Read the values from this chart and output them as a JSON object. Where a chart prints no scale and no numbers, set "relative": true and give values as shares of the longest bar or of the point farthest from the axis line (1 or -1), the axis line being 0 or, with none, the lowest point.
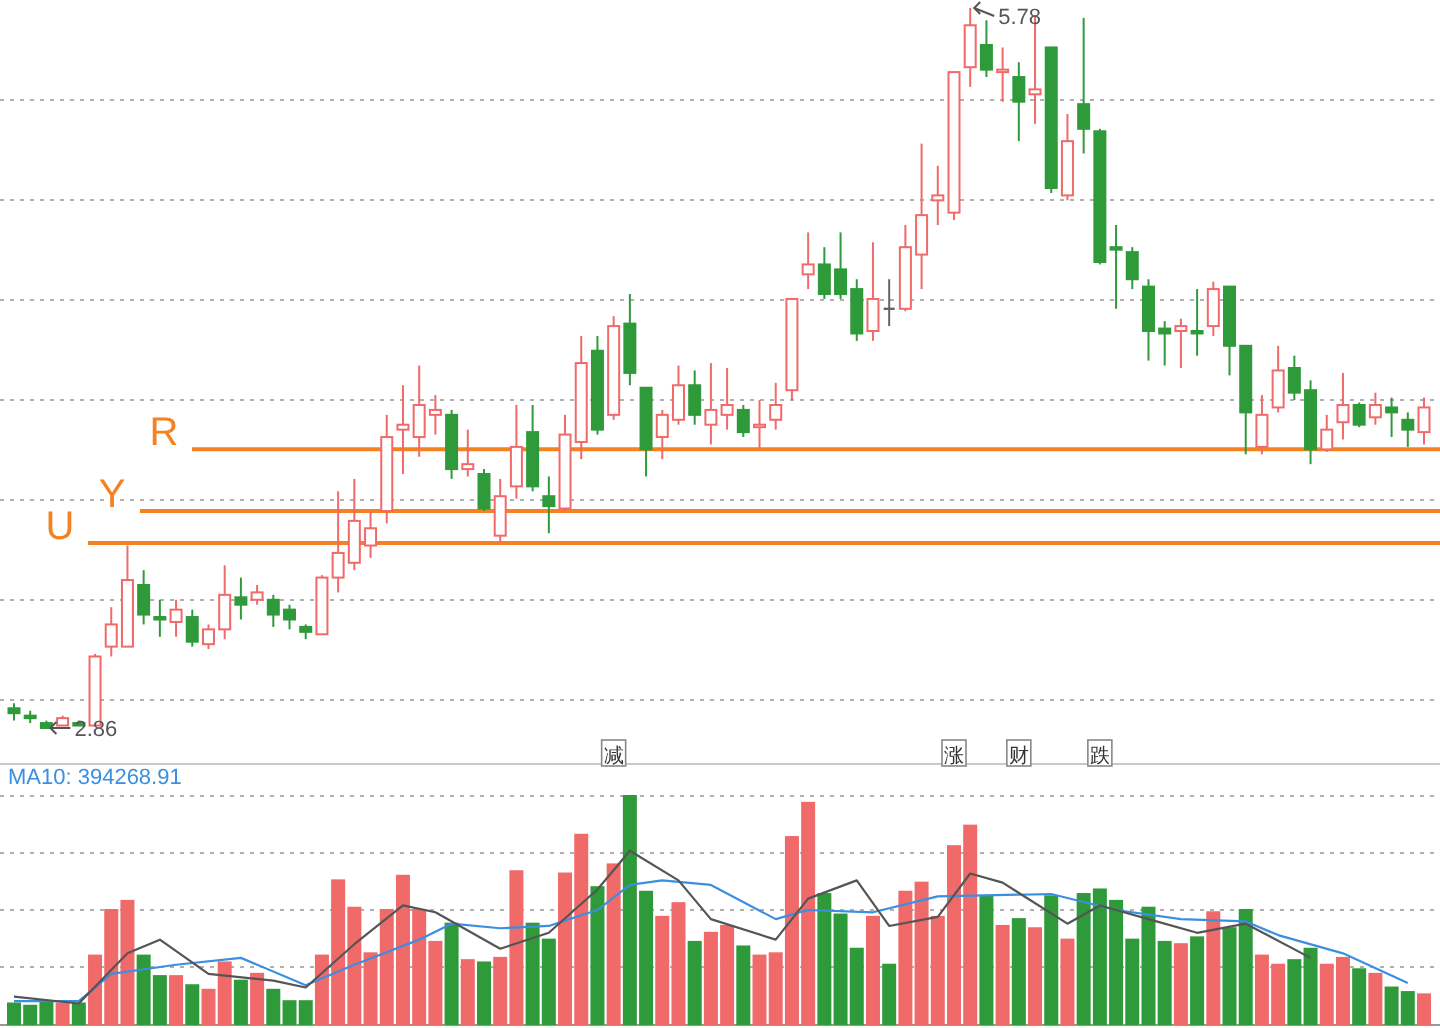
{
  "chart_data": [
    {
      "type": "candlestick",
      "grid": true,
      "categories": [
        null,
        null,
        null,
        null,
        null,
        null,
        null,
        null,
        null,
        null,
        null,
        null,
        null,
        null,
        null,
        null,
        null,
        null,
        null,
        null,
        null,
        null,
        null,
        null,
        null,
        null,
        null,
        null,
        null,
        null,
        null,
        null,
        null,
        null,
        null,
        null,
        null,
        "减",
        null,
        null,
        null,
        null,
        null,
        null,
        null,
        null,
        null,
        null,
        null,
        null,
        null,
        null,
        null,
        null,
        null,
        null,
        null,
        null,
        "涨",
        null,
        null,
        null,
        "财",
        null,
        null,
        null,
        null,
        "跌",
        null,
        null,
        null,
        null,
        null,
        null,
        null,
        null,
        null,
        null,
        null,
        null,
        null,
        null,
        null,
        null,
        null,
        null,
        null,
        null
      ],
      "ohlc": [
        [
          2.94,
          2.96,
          2.89,
          2.92
        ],
        [
          2.91,
          2.93,
          2.88,
          2.9
        ],
        [
          2.88,
          2.89,
          2.86,
          2.86
        ],
        [
          2.87,
          2.91,
          2.87,
          2.9
        ],
        [
          2.88,
          2.89,
          2.87,
          2.87
        ],
        [
          2.87,
          3.16,
          2.87,
          3.15
        ],
        [
          3.19,
          3.35,
          3.15,
          3.28
        ],
        [
          3.19,
          3.6,
          3.19,
          3.46
        ],
        [
          3.44,
          3.5,
          3.28,
          3.32
        ],
        [
          3.31,
          3.38,
          3.23,
          3.3
        ],
        [
          3.29,
          3.38,
          3.23,
          3.34
        ],
        [
          3.31,
          3.34,
          3.19,
          3.21
        ],
        [
          3.2,
          3.28,
          3.18,
          3.26
        ],
        [
          3.26,
          3.52,
          3.22,
          3.4
        ],
        [
          3.39,
          3.47,
          3.3,
          3.36
        ],
        [
          3.38,
          3.44,
          3.36,
          3.41
        ],
        [
          3.38,
          3.4,
          3.27,
          3.32
        ],
        [
          3.34,
          3.36,
          3.26,
          3.3
        ],
        [
          3.27,
          3.28,
          3.22,
          3.25
        ],
        [
          3.24,
          3.48,
          3.24,
          3.47
        ],
        [
          3.47,
          3.82,
          3.41,
          3.57
        ],
        [
          3.53,
          3.87,
          3.5,
          3.7
        ],
        [
          3.6,
          3.74,
          3.55,
          3.67
        ],
        [
          3.74,
          4.13,
          3.69,
          4.04
        ],
        [
          4.07,
          4.25,
          3.89,
          4.09
        ],
        [
          4.04,
          4.33,
          3.96,
          4.17
        ],
        [
          4.13,
          4.21,
          4.05,
          4.15
        ],
        [
          4.13,
          4.15,
          3.87,
          3.91
        ],
        [
          3.91,
          4.07,
          3.88,
          3.93
        ],
        [
          3.89,
          3.91,
          3.74,
          3.75
        ],
        [
          3.64,
          3.87,
          3.61,
          3.8
        ],
        [
          3.84,
          4.17,
          3.79,
          4.0
        ],
        [
          4.06,
          4.17,
          3.82,
          3.84
        ],
        [
          3.8,
          3.88,
          3.65,
          3.76
        ],
        [
          3.75,
          4.13,
          3.74,
          4.05
        ],
        [
          4.02,
          4.45,
          3.95,
          4.34
        ],
        [
          4.39,
          4.45,
          4.05,
          4.07
        ],
        [
          4.13,
          4.53,
          4.11,
          4.49
        ],
        [
          4.5,
          4.62,
          4.25,
          4.3
        ],
        [
          4.24,
          4.24,
          3.88,
          3.99
        ],
        [
          4.04,
          4.15,
          3.95,
          4.13
        ],
        [
          4.11,
          4.33,
          4.09,
          4.25
        ],
        [
          4.25,
          4.31,
          4.09,
          4.13
        ],
        [
          4.09,
          4.34,
          4.01,
          4.15
        ],
        [
          4.13,
          4.32,
          4.07,
          4.17
        ],
        [
          4.15,
          4.17,
          4.04,
          4.06
        ],
        [
          4.08,
          4.19,
          3.99,
          4.09
        ],
        [
          4.11,
          4.26,
          4.07,
          4.17
        ],
        [
          4.23,
          4.6,
          4.19,
          4.6
        ],
        [
          4.7,
          4.87,
          4.64,
          4.74
        ],
        [
          4.74,
          4.81,
          4.6,
          4.62
        ],
        [
          4.72,
          4.87,
          4.6,
          4.62
        ],
        [
          4.64,
          4.68,
          4.43,
          4.46
        ],
        [
          4.47,
          4.83,
          4.43,
          4.6
        ],
        [
          4.56,
          4.68,
          4.49,
          4.56
        ],
        [
          4.56,
          4.9,
          4.55,
          4.81
        ],
        [
          4.78,
          5.23,
          4.64,
          4.94
        ],
        [
          5.0,
          5.14,
          4.9,
          5.02
        ],
        [
          4.95,
          5.52,
          4.92,
          5.52
        ],
        [
          5.54,
          5.78,
          5.46,
          5.71
        ],
        [
          5.63,
          5.73,
          5.5,
          5.53
        ],
        [
          5.52,
          5.62,
          5.4,
          5.53
        ],
        [
          5.5,
          5.56,
          5.24,
          5.4
        ],
        [
          5.43,
          5.75,
          5.31,
          5.45
        ],
        [
          5.62,
          5.62,
          5.03,
          5.05
        ],
        [
          5.02,
          5.35,
          5.0,
          5.24
        ],
        [
          5.39,
          5.74,
          5.19,
          5.29
        ],
        [
          5.28,
          5.29,
          4.74,
          4.75
        ],
        [
          4.81,
          4.9,
          4.56,
          4.8
        ],
        [
          4.79,
          4.81,
          4.64,
          4.68
        ],
        [
          4.65,
          4.68,
          4.35,
          4.47
        ],
        [
          4.48,
          4.51,
          4.33,
          4.46
        ],
        [
          4.47,
          4.52,
          4.32,
          4.49
        ],
        [
          4.47,
          4.64,
          4.37,
          4.46
        ],
        [
          4.49,
          4.67,
          4.45,
          4.64
        ],
        [
          4.65,
          4.65,
          4.29,
          4.41
        ],
        [
          4.41,
          4.41,
          3.97,
          4.14
        ],
        [
          4.0,
          4.21,
          3.97,
          4.13
        ],
        [
          4.16,
          4.41,
          4.14,
          4.31
        ],
        [
          4.32,
          4.37,
          4.19,
          4.22
        ],
        [
          4.23,
          4.27,
          3.93,
          3.99
        ],
        [
          3.99,
          4.13,
          3.98,
          4.07
        ],
        [
          4.1,
          4.3,
          4.03,
          4.17
        ],
        [
          4.17,
          4.18,
          4.08,
          4.09
        ],
        [
          4.12,
          4.22,
          4.09,
          4.17
        ],
        [
          4.16,
          4.2,
          4.04,
          4.14
        ],
        [
          4.11,
          4.14,
          4.0,
          4.07
        ],
        [
          4.06,
          4.2,
          4.01,
          4.16
        ]
      ],
      "colors": [
        "#2f9a3a",
        "#2f9a3a",
        "#2f9a3a",
        "#f06a6a",
        "#2f9a3a",
        "#f06a6a",
        "#f06a6a",
        "#f06a6a",
        "#2f9a3a",
        "#2f9a3a",
        "#f06a6a",
        "#2f9a3a",
        "#f06a6a",
        "#f06a6a",
        "#2f9a3a",
        "#f06a6a",
        "#2f9a3a",
        "#2f9a3a",
        "#2f9a3a",
        "#f06a6a",
        "#f06a6a",
        "#f06a6a",
        "#f06a6a",
        "#f06a6a",
        "#f06a6a",
        "#f06a6a",
        "#f06a6a",
        "#2f9a3a",
        "#f06a6a",
        "#2f9a3a",
        "#f06a6a",
        "#f06a6a",
        "#2f9a3a",
        "#2f9a3a",
        "#f06a6a",
        "#f06a6a",
        "#2f9a3a",
        "#f06a6a",
        "#2f9a3a",
        "#2f9a3a",
        "#f06a6a",
        "#f06a6a",
        "#2f9a3a",
        "#f06a6a",
        "#f06a6a",
        "#2f9a3a",
        "#f06a6a",
        "#f06a6a",
        "#f06a6a",
        "#f06a6a",
        "#2f9a3a",
        "#2f9a3a",
        "#2f9a3a",
        "#f06a6a",
        "#666666",
        "#f06a6a",
        "#f06a6a",
        "#f06a6a",
        "#f06a6a",
        "#f06a6a",
        "#2f9a3a",
        "#f06a6a",
        "#2f9a3a",
        "#f06a6a",
        "#2f9a3a",
        "#f06a6a",
        "#2f9a3a",
        "#2f9a3a",
        "#2f9a3a",
        "#2f9a3a",
        "#2f9a3a",
        "#2f9a3a",
        "#f06a6a",
        "#2f9a3a",
        "#f06a6a",
        "#2f9a3a",
        "#2f9a3a",
        "#f06a6a",
        "#f06a6a",
        "#2f9a3a",
        "#2f9a3a",
        "#f06a6a",
        "#f06a6a",
        "#2f9a3a",
        "#f06a6a",
        "#2f9a3a",
        "#2f9a3a",
        "#f06a6a"
      ],
      "ref_lines": [
        {
          "axis": "y",
          "value": 3.61,
          "label": "U",
          "color": "#f58220"
        },
        {
          "axis": "y",
          "value": 3.74,
          "label": "Y",
          "color": "#f58220"
        },
        {
          "axis": "y",
          "value": 3.99,
          "label": "R",
          "color": "#f58220"
        }
      ],
      "annotations": [
        "5.78",
        "2.86"
      ]
    },
    {
      "type": "bar",
      "relative": true,
      "grid": true,
      "legend": "top left",
      "categories": [
        null,
        null,
        null,
        null,
        null,
        null,
        null,
        null,
        null,
        null,
        null,
        null,
        null,
        null,
        null,
        null,
        null,
        null,
        null,
        null,
        null,
        null,
        null,
        null,
        null,
        null,
        null,
        null,
        null,
        null,
        null,
        null,
        null,
        null,
        null,
        null,
        null,
        null,
        null,
        null,
        null,
        null,
        null,
        null,
        null,
        null,
        null,
        null,
        null,
        null,
        null,
        null,
        null,
        null,
        null,
        null,
        null,
        null,
        null,
        null,
        null,
        null,
        null,
        null,
        null,
        null,
        null,
        null,
        null,
        null,
        null,
        null,
        null,
        null,
        null,
        null,
        null,
        null,
        null,
        null,
        null,
        null,
        null,
        null,
        null,
        null,
        null,
        null
      ],
      "series": [
        {
          "type": "bar",
          "values": [
            0.09,
            0.08,
            0.1,
            0.09,
            0.09,
            0.3,
            0.5,
            0.54,
            0.3,
            0.21,
            0.21,
            0.17,
            0.15,
            0.27,
            0.19,
            0.22,
            0.15,
            0.1,
            0.1,
            0.3,
            0.63,
            0.51,
            0.31,
            0.5,
            0.65,
            0.5,
            0.36,
            0.44,
            0.28,
            0.27,
            0.29,
            0.67,
            0.44,
            0.37,
            0.66,
            0.83,
            0.6,
            0.7,
            1,
            0.58,
            0.47,
            0.53,
            0.36,
            0.4,
            0.43,
            0.34,
            0.3,
            0.31,
            0.82,
            0.97,
            0.57,
            0.48,
            0.33,
            0.47,
            0.26,
            0.58,
            0.62,
            0.47,
            0.78,
            0.87,
            0.56,
            0.43,
            0.46,
            0.42,
            0.56,
            0.37,
            0.57,
            0.59,
            0.54,
            0.37,
            0.51,
            0.36,
            0.35,
            0.38,
            0.49,
            0.42,
            0.5,
            0.3,
            0.26,
            0.28,
            0.33,
            0.26,
            0.29,
            0.24,
            0.22,
            0.16,
            0.14,
            0.13
          ],
          "colors": [
            "#2f9a3a",
            "#2f9a3a",
            "#2f9a3a",
            "#f06a6a",
            "#2f9a3a",
            "#f06a6a",
            "#f06a6a",
            "#f06a6a",
            "#2f9a3a",
            "#2f9a3a",
            "#f06a6a",
            "#2f9a3a",
            "#f06a6a",
            "#f06a6a",
            "#2f9a3a",
            "#f06a6a",
            "#2f9a3a",
            "#2f9a3a",
            "#2f9a3a",
            "#f06a6a",
            "#f06a6a",
            "#f06a6a",
            "#f06a6a",
            "#f06a6a",
            "#f06a6a",
            "#f06a6a",
            "#f06a6a",
            "#2f9a3a",
            "#f06a6a",
            "#2f9a3a",
            "#f06a6a",
            "#f06a6a",
            "#2f9a3a",
            "#2f9a3a",
            "#f06a6a",
            "#f06a6a",
            "#2f9a3a",
            "#f06a6a",
            "#2f9a3a",
            "#2f9a3a",
            "#f06a6a",
            "#f06a6a",
            "#2f9a3a",
            "#f06a6a",
            "#f06a6a",
            "#2f9a3a",
            "#f06a6a",
            "#f06a6a",
            "#f06a6a",
            "#f06a6a",
            "#2f9a3a",
            "#2f9a3a",
            "#2f9a3a",
            "#f06a6a",
            "#2f9a3a",
            "#f06a6a",
            "#f06a6a",
            "#f06a6a",
            "#f06a6a",
            "#f06a6a",
            "#2f9a3a",
            "#f06a6a",
            "#2f9a3a",
            "#f06a6a",
            "#2f9a3a",
            "#f06a6a",
            "#2f9a3a",
            "#2f9a3a",
            "#2f9a3a",
            "#2f9a3a",
            "#2f9a3a",
            "#2f9a3a",
            "#f06a6a",
            "#2f9a3a",
            "#f06a6a",
            "#2f9a3a",
            "#2f9a3a",
            "#f06a6a",
            "#f06a6a",
            "#2f9a3a",
            "#2f9a3a",
            "#f06a6a",
            "#f06a6a",
            "#2f9a3a",
            "#f06a6a",
            "#2f9a3a",
            "#2f9a3a",
            "#f06a6a"
          ]
        },
        {
          "type": "line",
          "name": "MA10: 394268.91",
          "color": "#3b8fe0",
          "values": [
            0.1,
            null,
            null,
            null,
            0.1,
            null,
            0.22,
            null,
            null,
            null,
            0.26,
            null,
            null,
            null,
            0.29,
            null,
            null,
            null,
            0.17,
            null,
            null,
            0.26,
            null,
            null,
            null,
            0.37,
            null,
            0.44,
            null,
            null,
            0.42,
            null,
            null,
            0.43,
            null,
            null,
            0.5,
            null,
            0.61,
            null,
            0.63,
            null,
            null,
            0.61,
            null,
            null,
            null,
            0.46,
            null,
            0.5,
            null,
            null,
            null,
            0.49,
            null,
            null,
            null,
            0.56,
            null,
            null,
            null,
            null,
            null,
            null,
            0.57,
            null,
            null,
            null,
            0.5,
            null,
            null,
            null,
            0.46,
            null,
            null,
            null,
            0.45,
            null,
            0.39,
            null,
            null,
            null,
            0.31,
            null,
            null,
            null,
            0.18,
            null
          ]
        },
        {
          "type": "line",
          "color": "#555555",
          "values": [
            0.12,
            null,
            null,
            null,
            0.09,
            null,
            null,
            0.31,
            null,
            0.37,
            null,
            null,
            0.22,
            null,
            null,
            null,
            0.19,
            null,
            0.16,
            null,
            null,
            0.35,
            null,
            null,
            0.52,
            null,
            0.49,
            null,
            null,
            null,
            0.33,
            null,
            null,
            0.4,
            null,
            null,
            0.59,
            null,
            0.76,
            null,
            null,
            0.63,
            null,
            0.46,
            null,
            null,
            null,
            0.37,
            null,
            0.55,
            null,
            null,
            0.63,
            null,
            0.43,
            null,
            null,
            0.47,
            null,
            0.66,
            null,
            0.62,
            null,
            null,
            null,
            0.44,
            null,
            0.52,
            null,
            null,
            0.46,
            null,
            null,
            0.4,
            null,
            null,
            0.44,
            null,
            null,
            null,
            0.29,
            null,
            null,
            null,
            null,
            null,
            null,
            null
          ]
        }
      ]
    }
  ]
}
